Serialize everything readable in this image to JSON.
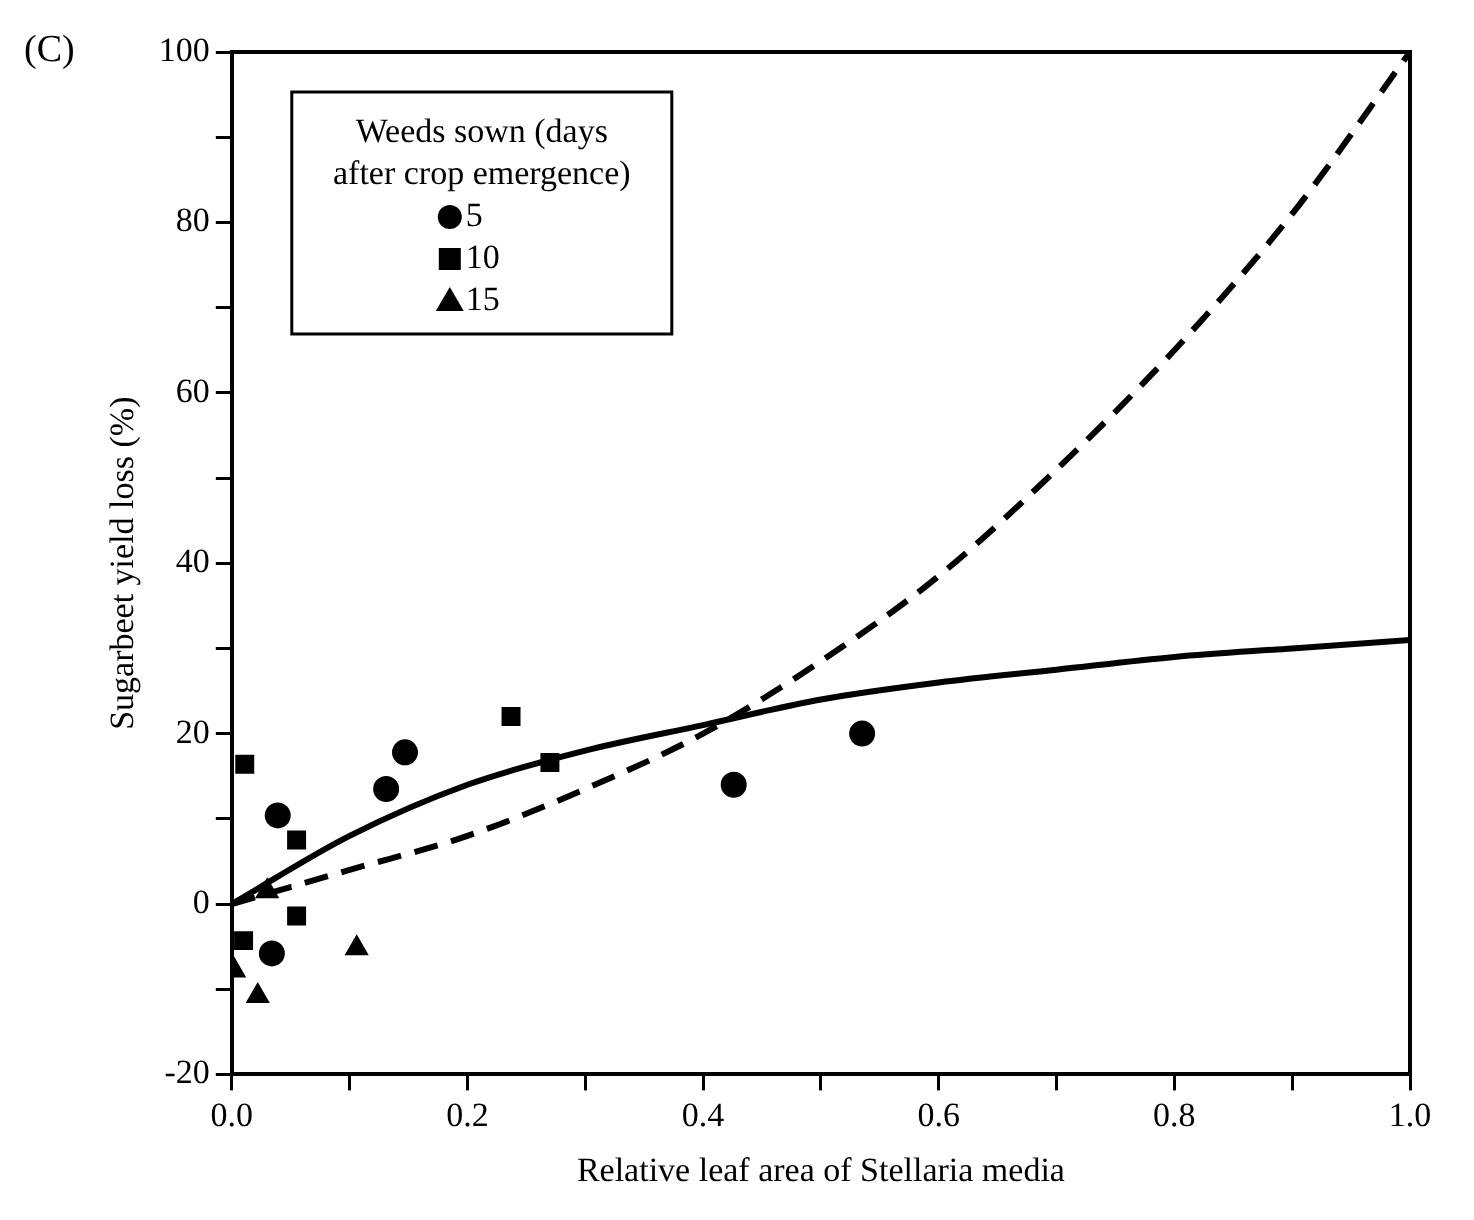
{
  "chart_data": {
    "type": "scatter",
    "xlabel": "Relative leaf area of Stellaria media",
    "ylabel": "Sugarbeet yield loss (%)",
    "legend_title": "Weeds sown (days after crop emergence)",
    "annotations": [
      "(C)"
    ],
    "xlim": [
      0,
      1
    ],
    "ylim": [
      -20,
      100
    ],
    "xticks": [
      {
        "value": 0,
        "label": "0.0"
      },
      {
        "value": 0.1,
        "label": null
      },
      {
        "value": 0.2,
        "label": "0.2"
      },
      {
        "value": 0.3,
        "label": null
      },
      {
        "value": 0.4,
        "label": "0.4"
      },
      {
        "value": 0.5,
        "label": null
      },
      {
        "value": 0.6,
        "label": "0.6"
      },
      {
        "value": 0.7,
        "label": null
      },
      {
        "value": 0.8,
        "label": "0.8"
      },
      {
        "value": 0.9,
        "label": null
      },
      {
        "value": 1,
        "label": "1.0"
      }
    ],
    "yticks": [
      -20,
      {
        "value": -10,
        "label": null
      },
      0,
      {
        "value": 10,
        "label": null
      },
      20,
      {
        "value": 30,
        "label": null
      },
      40,
      {
        "value": 50,
        "label": null
      },
      60,
      {
        "value": 70,
        "label": null
      },
      80,
      {
        "value": 90,
        "label": null
      },
      100
    ],
    "legend": "top left",
    "grid": false,
    "series": [
      {
        "name": "5",
        "color": "#000000",
        "marker": "circle",
        "x": [
          0.147,
          0.131,
          0.039,
          0.034,
          0.426,
          0.535
        ],
        "values": [
          17.8,
          13.5,
          10.4,
          -5.8,
          14,
          20
        ]
      },
      {
        "name": "10",
        "color": "#000000",
        "marker": "square",
        "x": [
          0.011,
          0.055,
          0.055,
          0.01,
          0.27,
          0.237
        ],
        "values": [
          16.4,
          7.5,
          -1.4,
          -4.3,
          16.6,
          22
        ]
      },
      {
        "name": "15",
        "color": "#000000",
        "marker": "triangle",
        "x": [
          0.106,
          0.022,
          0.002,
          0.03
        ],
        "values": [
          -5.2,
          -10.8,
          -7.8,
          1.5
        ]
      },
      {
        "type": "line",
        "color": "#000000",
        "line_style": "solid",
        "marker": "none",
        "x": [
          0,
          0.1,
          0.2,
          0.3,
          0.4,
          0.5,
          0.6,
          0.7,
          0.8,
          0.9,
          1.0
        ],
        "values": [
          0,
          8,
          14,
          18,
          21,
          24,
          26,
          27.5,
          29,
          30,
          31
        ]
      },
      {
        "type": "line",
        "color": "#000000",
        "line_style": "dashed",
        "marker": "none",
        "x": [
          0,
          0.1,
          0.2,
          0.3,
          0.4,
          0.5,
          0.6,
          0.7,
          0.8,
          0.9,
          1.0
        ],
        "values": [
          0,
          4,
          8,
          13.5,
          20,
          28.5,
          38.5,
          51,
          65,
          81,
          100
        ]
      }
    ]
  }
}
